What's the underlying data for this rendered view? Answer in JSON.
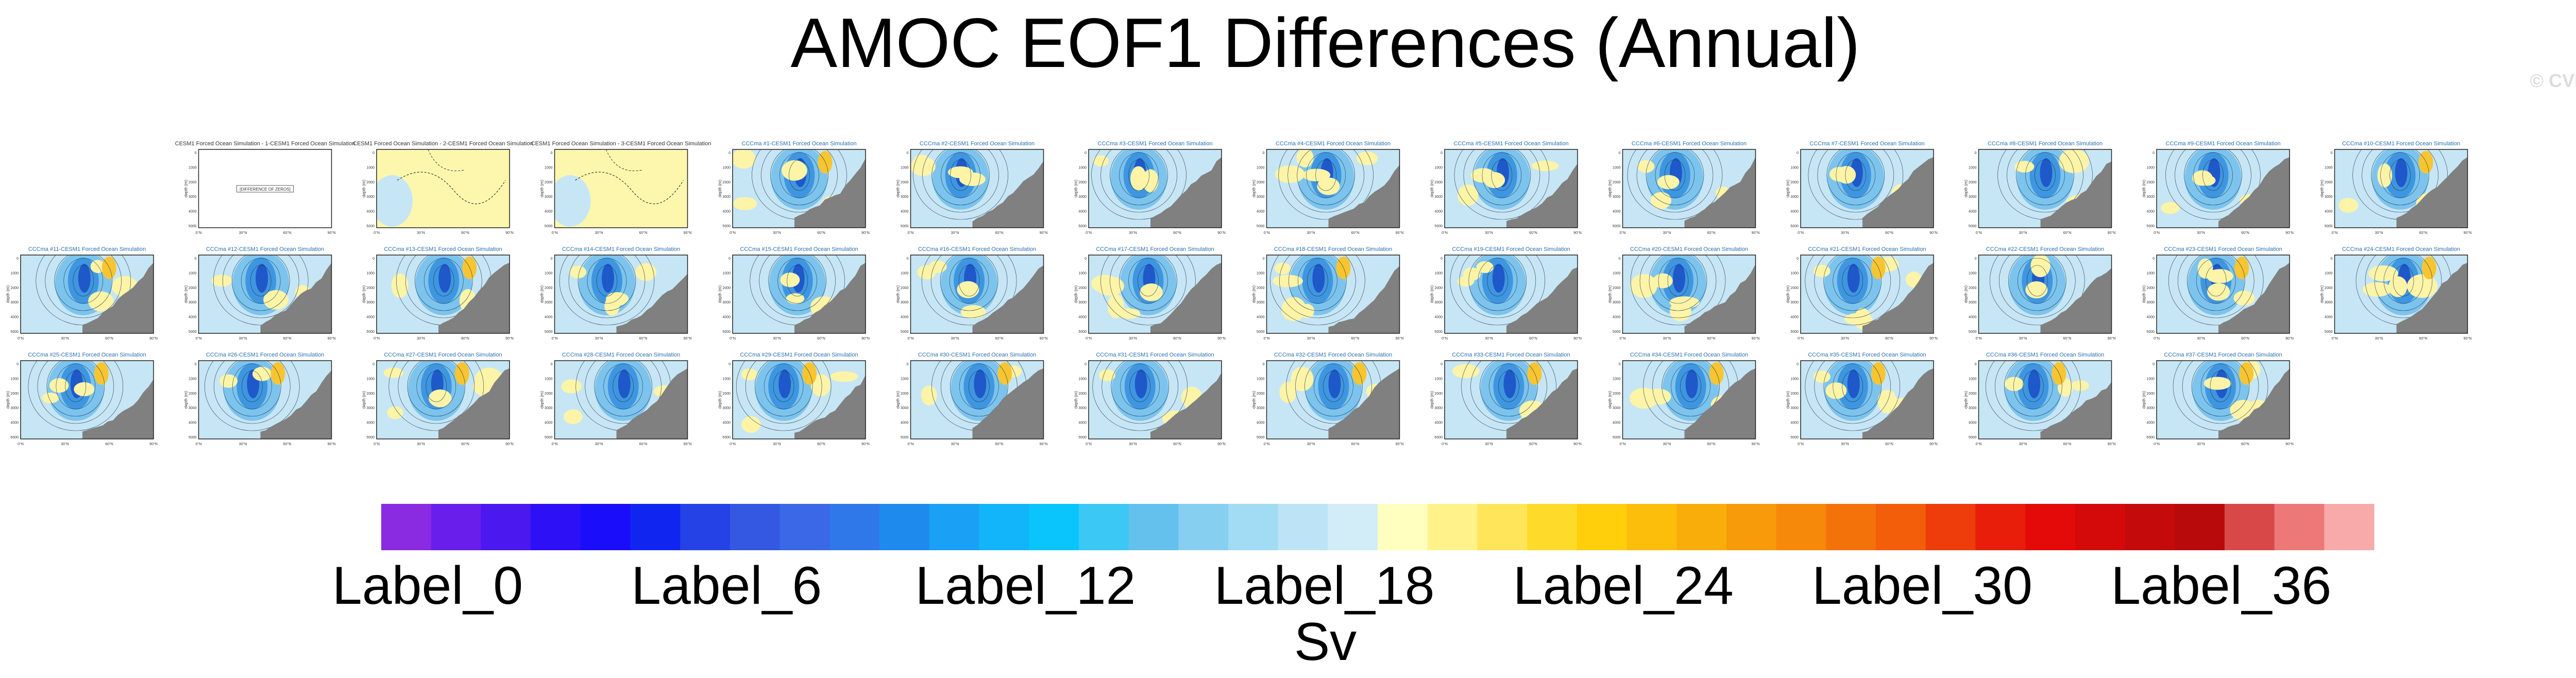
{
  "title": "AMOC EOF1 Differences (Annual)",
  "copyright": "© CVDP-LE",
  "panels": {
    "first_row_titles": [
      "CESM1 Forced Ocean Simulation - 1-CESM1 Forced Ocean Simulation",
      "CESM1 Forced Ocean Simulation - 2-CESM1 Forced Ocean Simulation",
      "CESM1 Forced Ocean Simulation - 3-CESM1 Forced Ocean Simulation"
    ],
    "member_title_template": "CCCma #{n}-CESM1 Forced Ocean Simulation",
    "empty_panel_label": "[DIFFERENCE OF ZEROS]",
    "grid": [
      13,
      14,
      13
    ],
    "grid_start": [
      1,
      0,
      0
    ],
    "axis_x_ticks": [
      "0°N",
      "30°N",
      "60°N",
      "90°N"
    ],
    "axis_y_ticks": [
      "0",
      "1000",
      "2000",
      "3000",
      "4000",
      "5000"
    ],
    "axis_y_label": "depth (m)"
  },
  "colorbar": {
    "colors": [
      "#8a2be2",
      "#6a1eeb",
      "#4b18f0",
      "#2d10f5",
      "#1a0dfa",
      "#1026f0",
      "#2442e6",
      "#3558e2",
      "#3a68e6",
      "#2f78ea",
      "#1e8aee",
      "#1aa0f5",
      "#12b4fa",
      "#0ac4fc",
      "#3cc8f4",
      "#64c0ec",
      "#86cff0",
      "#a2dbf4",
      "#bce4f6",
      "#d2edf8",
      "#ffffc0",
      "#fff28a",
      "#fee55a",
      "#fedb2a",
      "#fecf0a",
      "#fcbe0a",
      "#f9ad0a",
      "#f79b0a",
      "#f6880a",
      "#f4720a",
      "#f25e0a",
      "#ee3c0a",
      "#e81e0a",
      "#e40a0a",
      "#d40a0a",
      "#c40a0a",
      "#b80a0a",
      "#d94848",
      "#ec7878",
      "#f8aaaa"
    ],
    "labels": [
      {
        "text": "Label_0",
        "index": 0
      },
      {
        "text": "Label_6",
        "index": 6
      },
      {
        "text": "Label_12",
        "index": 12
      },
      {
        "text": "Label_18",
        "index": 18
      },
      {
        "text": "Label_24",
        "index": 24
      },
      {
        "text": "Label_30",
        "index": 30
      },
      {
        "text": "Label_36",
        "index": 36
      }
    ],
    "units": "Sv"
  },
  "chart_data": {
    "type": "heatmap",
    "title": "AMOC EOF1 Differences (Annual)",
    "description_of_marks": "Small-multiple latitude-depth contour maps of AMOC EOF1 differences",
    "xlabel": "",
    "ylabel": "depth (m)",
    "x_ticks": [
      "0°N",
      "30°N",
      "60°N",
      "90°N"
    ],
    "y_ticks": [
      "0",
      "1000",
      "2000",
      "3000",
      "4000",
      "5000"
    ],
    "colorbar_label": "Sv",
    "colorbar_ticks": [
      "Label_0",
      "Label_6",
      "Label_12",
      "Label_18",
      "Label_24",
      "Label_30",
      "Label_36"
    ],
    "n_colors": 40,
    "n_panels": 40
  }
}
